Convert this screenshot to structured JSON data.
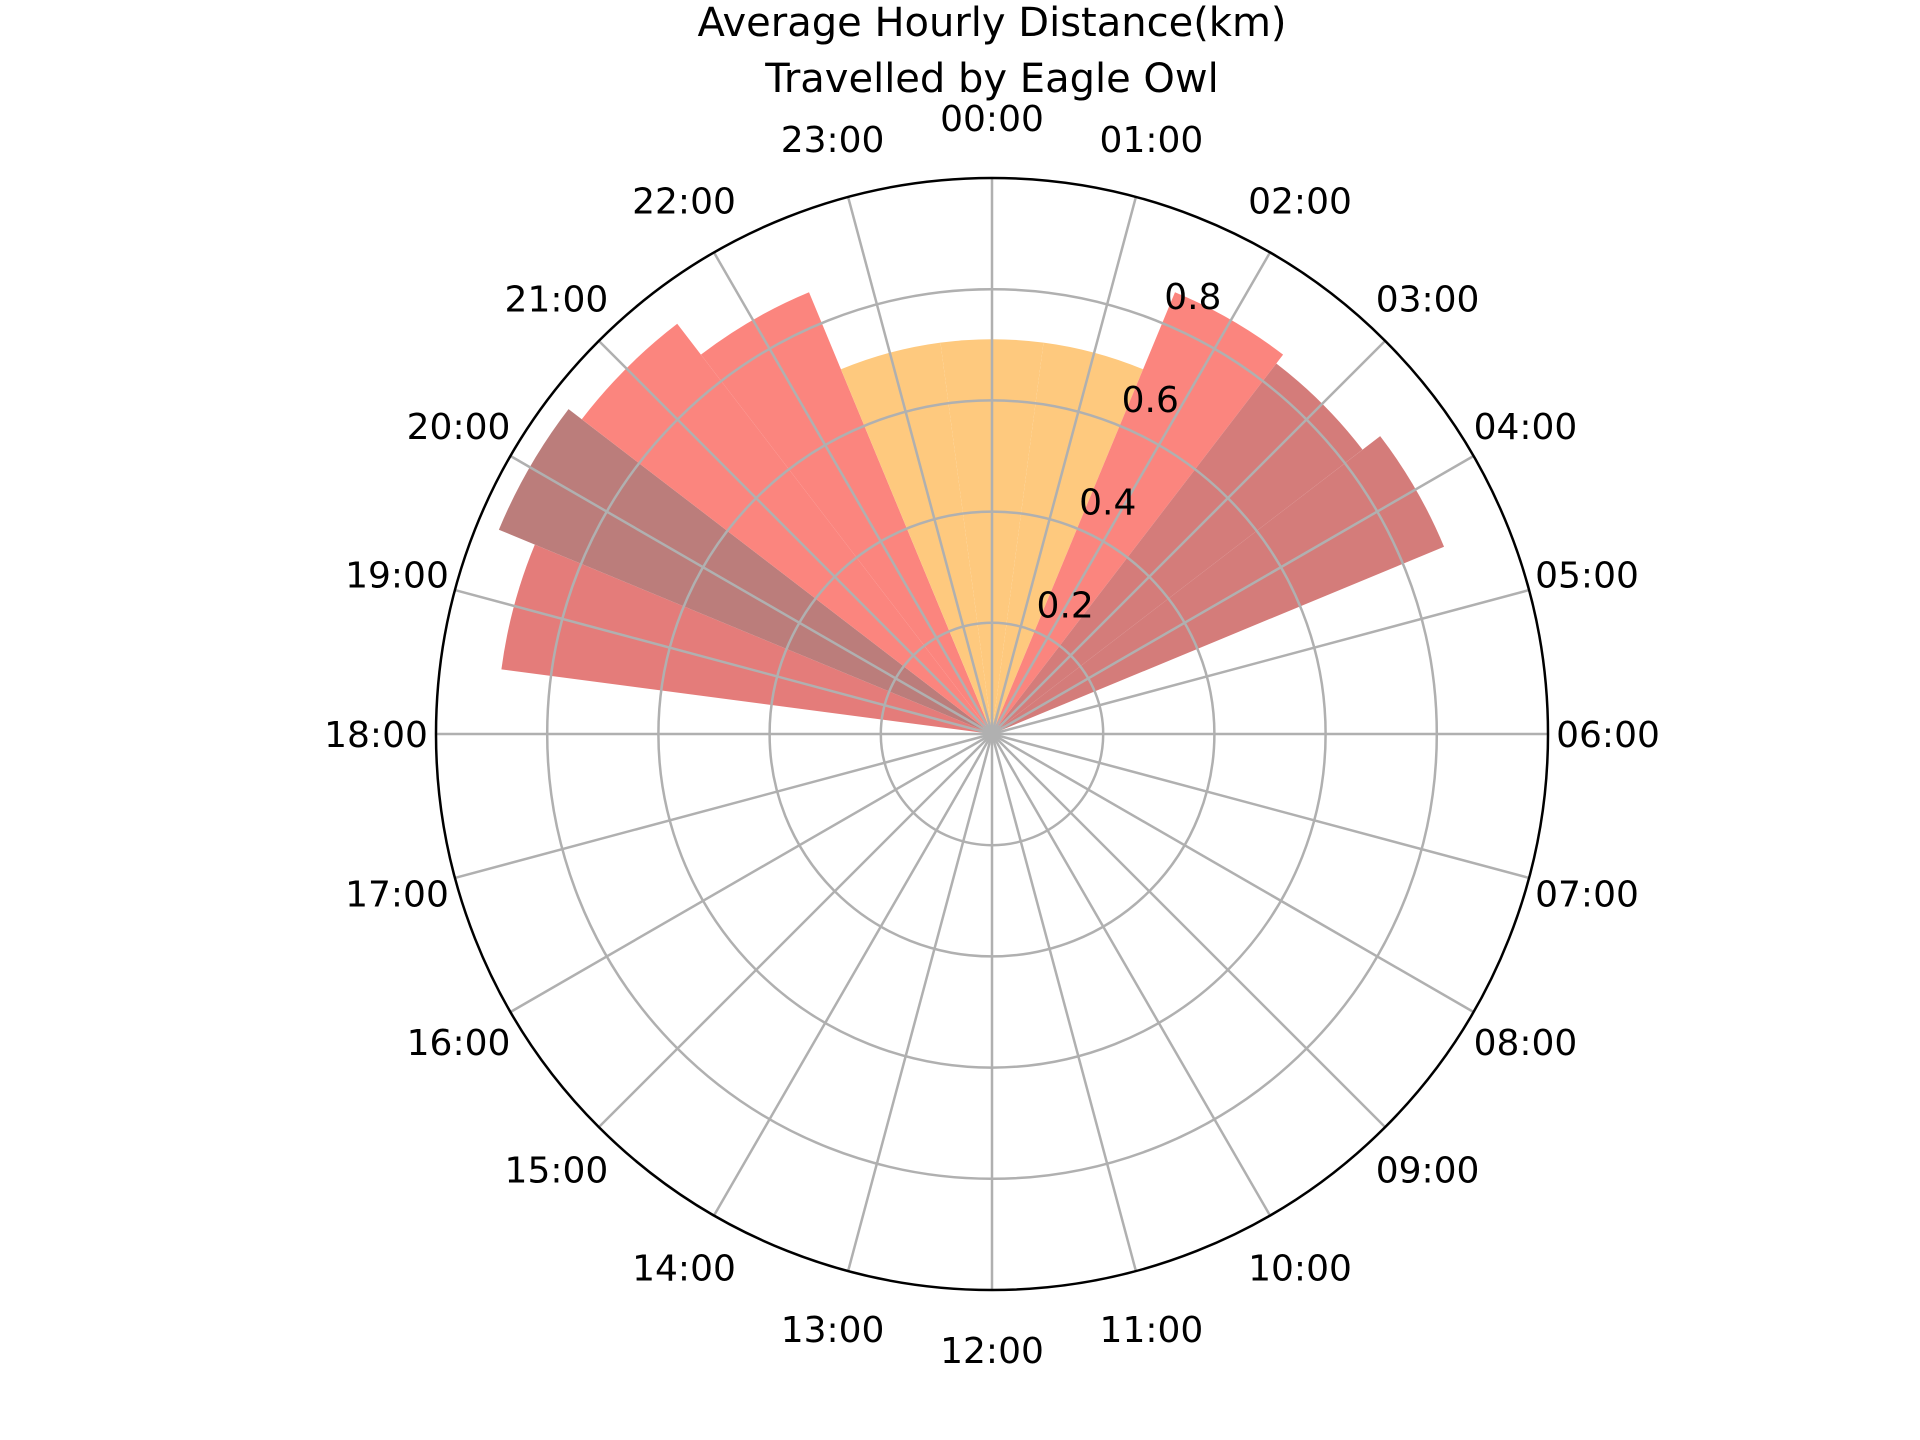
{
  "chart_data": {
    "type": "bar",
    "subtype": "polar",
    "title_lines": [
      "Average Hourly Distance(km)",
      "Travelled by Eagle Owl"
    ],
    "categories": [
      "00:00",
      "01:00",
      "02:00",
      "03:00",
      "04:00",
      "05:00",
      "06:00",
      "07:00",
      "08:00",
      "09:00",
      "10:00",
      "11:00",
      "12:00",
      "13:00",
      "14:00",
      "15:00",
      "16:00",
      "17:00",
      "18:00",
      "19:00",
      "20:00",
      "21:00",
      "22:00",
      "23:00"
    ],
    "values": [
      0.71,
      0.71,
      0.86,
      0.84,
      0.88,
      0,
      0,
      0,
      0,
      0,
      0,
      0,
      0,
      0,
      0,
      0,
      0,
      0,
      0,
      0.89,
      0.96,
      0.93,
      0.86,
      0.71
    ],
    "colors": [
      "#FEC97E",
      "#FEC97E",
      "#FB857E",
      "#D47C7A",
      "#D47C7A",
      "#FFFFFF",
      "#FFFFFF",
      "#FFFFFF",
      "#FFFFFF",
      "#FFFFFF",
      "#FFFFFF",
      "#FFFFFF",
      "#FFFFFF",
      "#FFFFFF",
      "#FFFFFF",
      "#FFFFFF",
      "#FFFFFF",
      "#FFFFFF",
      "#FFFFFF",
      "#E47C7A",
      "#BB7D7B",
      "#FB857E",
      "#FB857E",
      "#FEC97E"
    ],
    "r_ticks": [
      0.2,
      0.4,
      0.6,
      0.8
    ],
    "r_tick_labels": [
      "0.2",
      "0.4",
      "0.6",
      "0.8"
    ],
    "rlim": [
      0,
      1.0
    ],
    "grid": true,
    "grid_color": "#B0B0B0",
    "direction": "clockwise",
    "zero_location": "top"
  }
}
